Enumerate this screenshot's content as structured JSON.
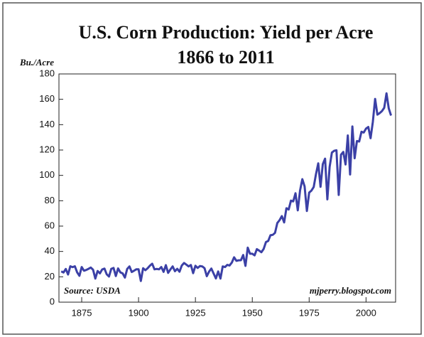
{
  "chart_data": {
    "type": "line",
    "title": "U.S. Corn Production: Yield per Acre",
    "subtitle": "1866 to 2011",
    "y_label": "Bu./Acre",
    "annotations": [
      "Source: USDA",
      "mjperry.blogspot.com"
    ],
    "color": "#3b40a6",
    "x": [
      1866,
      1867,
      1868,
      1869,
      1870,
      1871,
      1872,
      1873,
      1874,
      1875,
      1876,
      1877,
      1878,
      1879,
      1880,
      1881,
      1882,
      1883,
      1884,
      1885,
      1886,
      1887,
      1888,
      1889,
      1890,
      1891,
      1892,
      1893,
      1894,
      1895,
      1896,
      1897,
      1898,
      1899,
      1900,
      1901,
      1902,
      1903,
      1904,
      1905,
      1906,
      1907,
      1908,
      1909,
      1910,
      1911,
      1912,
      1913,
      1914,
      1915,
      1916,
      1917,
      1918,
      1919,
      1920,
      1921,
      1922,
      1923,
      1924,
      1925,
      1926,
      1927,
      1928,
      1929,
      1930,
      1931,
      1932,
      1933,
      1934,
      1935,
      1936,
      1937,
      1938,
      1939,
      1940,
      1941,
      1942,
      1943,
      1944,
      1945,
      1946,
      1947,
      1948,
      1949,
      1950,
      1951,
      1952,
      1953,
      1954,
      1955,
      1956,
      1957,
      1958,
      1959,
      1960,
      1961,
      1962,
      1963,
      1964,
      1965,
      1966,
      1967,
      1968,
      1969,
      1970,
      1971,
      1972,
      1973,
      1974,
      1975,
      1976,
      1977,
      1978,
      1979,
      1980,
      1981,
      1982,
      1983,
      1984,
      1985,
      1986,
      1987,
      1988,
      1989,
      1990,
      1991,
      1992,
      1993,
      1994,
      1995,
      1996,
      1997,
      1998,
      1999,
      2000,
      2001,
      2002,
      2003,
      2004,
      2005,
      2006,
      2007,
      2008,
      2009,
      2010,
      2011
    ],
    "values": [
      24.3,
      23.4,
      26.2,
      21.8,
      28.3,
      27.6,
      28.3,
      23.5,
      20.8,
      27.7,
      24.8,
      25.4,
      26.3,
      27.3,
      25.6,
      18.6,
      24.6,
      22.7,
      25.8,
      26.5,
      22.0,
      20.2,
      26.3,
      27.0,
      20.6,
      26.6,
      23.5,
      22.7,
      19.4,
      26.2,
      28.2,
      23.8,
      24.8,
      25.9,
      25.9,
      16.7,
      26.8,
      25.2,
      26.8,
      28.8,
      30.3,
      25.9,
      26.2,
      25.9,
      27.7,
      23.9,
      29.2,
      23.1,
      25.8,
      28.2,
      24.4,
      26.3,
      24.0,
      28.9,
      30.9,
      29.6,
      28.2,
      29.3,
      22.9,
      28.7,
      27.0,
      28.5,
      28.2,
      26.8,
      20.5,
      24.1,
      26.5,
      22.6,
      18.7,
      24.2,
      18.6,
      28.2,
      27.7,
      29.4,
      28.9,
      31.2,
      35.4,
      32.6,
      33.0,
      33.1,
      37.2,
      28.6,
      43.0,
      38.2,
      38.2,
      36.9,
      41.8,
      40.7,
      39.4,
      42.0,
      47.4,
      48.3,
      52.8,
      53.1,
      54.7,
      62.4,
      64.7,
      67.9,
      62.9,
      74.1,
      73.1,
      80.1,
      79.5,
      85.9,
      72.4,
      88.1,
      97.0,
      91.3,
      71.9,
      86.4,
      88.0,
      90.8,
      101.0,
      109.5,
      91.0,
      108.9,
      113.2,
      81.1,
      106.7,
      118.0,
      119.4,
      119.8,
      84.6,
      116.3,
      118.5,
      108.6,
      131.5,
      100.7,
      138.6,
      113.5,
      127.1,
      126.7,
      134.4,
      133.8,
      136.9,
      138.2,
      129.3,
      142.2,
      160.3,
      147.9,
      149.1,
      150.7,
      153.3,
      164.7,
      152.8,
      147.2
    ],
    "xlim": [
      1865,
      2013
    ],
    "xticks": [
      1875,
      1900,
      1925,
      1950,
      1975,
      2000
    ],
    "ylim": [
      0,
      180
    ],
    "yticks": [
      0,
      20,
      40,
      60,
      80,
      100,
      120,
      140,
      160,
      180
    ]
  }
}
